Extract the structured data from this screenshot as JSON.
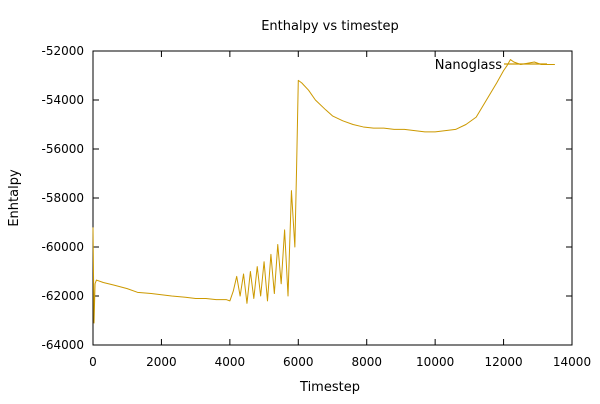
{
  "chart_data": {
    "type": "line",
    "title": "Enthalpy vs timestep",
    "xlabel": "Timestep",
    "ylabel": "Enhtalpy",
    "xlim": [
      0,
      14000
    ],
    "ylim": [
      -64000,
      -52000
    ],
    "x_ticks": [
      0,
      2000,
      4000,
      6000,
      8000,
      10000,
      12000,
      14000
    ],
    "y_ticks": [
      -64000,
      -62000,
      -60000,
      -58000,
      -56000,
      -54000,
      -52000
    ],
    "x_tick_labels": [
      "0",
      "2000",
      "4000",
      "6000",
      "8000",
      "10000",
      "12000",
      "14000"
    ],
    "y_tick_labels": [
      "-64000",
      "-62000",
      "-60000",
      "-58000",
      "-56000",
      "-54000",
      "-52000"
    ],
    "grid": false,
    "legend_position": "top-right",
    "series": [
      {
        "name": "Nanoglass",
        "color": "#cc9900",
        "points": [
          [
            0,
            -59200
          ],
          [
            30,
            -63100
          ],
          [
            60,
            -61500
          ],
          [
            100,
            -61350
          ],
          [
            300,
            -61450
          ],
          [
            600,
            -61550
          ],
          [
            1000,
            -61700
          ],
          [
            1300,
            -61850
          ],
          [
            1700,
            -61900
          ],
          [
            2000,
            -61950
          ],
          [
            2300,
            -62000
          ],
          [
            2700,
            -62050
          ],
          [
            3000,
            -62100
          ],
          [
            3300,
            -62100
          ],
          [
            3600,
            -62150
          ],
          [
            3900,
            -62150
          ],
          [
            4000,
            -62200
          ],
          [
            4100,
            -61800
          ],
          [
            4200,
            -61200
          ],
          [
            4300,
            -62000
          ],
          [
            4400,
            -61100
          ],
          [
            4500,
            -62300
          ],
          [
            4600,
            -61000
          ],
          [
            4700,
            -62100
          ],
          [
            4800,
            -60800
          ],
          [
            4900,
            -62000
          ],
          [
            5000,
            -60600
          ],
          [
            5100,
            -62200
          ],
          [
            5200,
            -60300
          ],
          [
            5300,
            -61900
          ],
          [
            5400,
            -59900
          ],
          [
            5500,
            -61500
          ],
          [
            5600,
            -59300
          ],
          [
            5700,
            -62000
          ],
          [
            5800,
            -57700
          ],
          [
            5900,
            -60000
          ],
          [
            5950,
            -56800
          ],
          [
            6000,
            -53200
          ],
          [
            6100,
            -53300
          ],
          [
            6300,
            -53600
          ],
          [
            6500,
            -54000
          ],
          [
            6800,
            -54400
          ],
          [
            7000,
            -54650
          ],
          [
            7300,
            -54850
          ],
          [
            7600,
            -55000
          ],
          [
            7900,
            -55100
          ],
          [
            8200,
            -55150
          ],
          [
            8500,
            -55150
          ],
          [
            8800,
            -55200
          ],
          [
            9100,
            -55200
          ],
          [
            9400,
            -55250
          ],
          [
            9700,
            -55300
          ],
          [
            10000,
            -55300
          ],
          [
            10300,
            -55250
          ],
          [
            10600,
            -55200
          ],
          [
            10900,
            -55000
          ],
          [
            11200,
            -54700
          ],
          [
            11500,
            -54000
          ],
          [
            11800,
            -53300
          ],
          [
            12000,
            -52800
          ],
          [
            12100,
            -52600
          ],
          [
            12200,
            -52350
          ],
          [
            12300,
            -52450
          ],
          [
            12500,
            -52550
          ],
          [
            12700,
            -52500
          ],
          [
            12900,
            -52450
          ],
          [
            13100,
            -52550
          ],
          [
            13300,
            -52550
          ],
          [
            13500,
            -52550
          ]
        ]
      }
    ]
  }
}
